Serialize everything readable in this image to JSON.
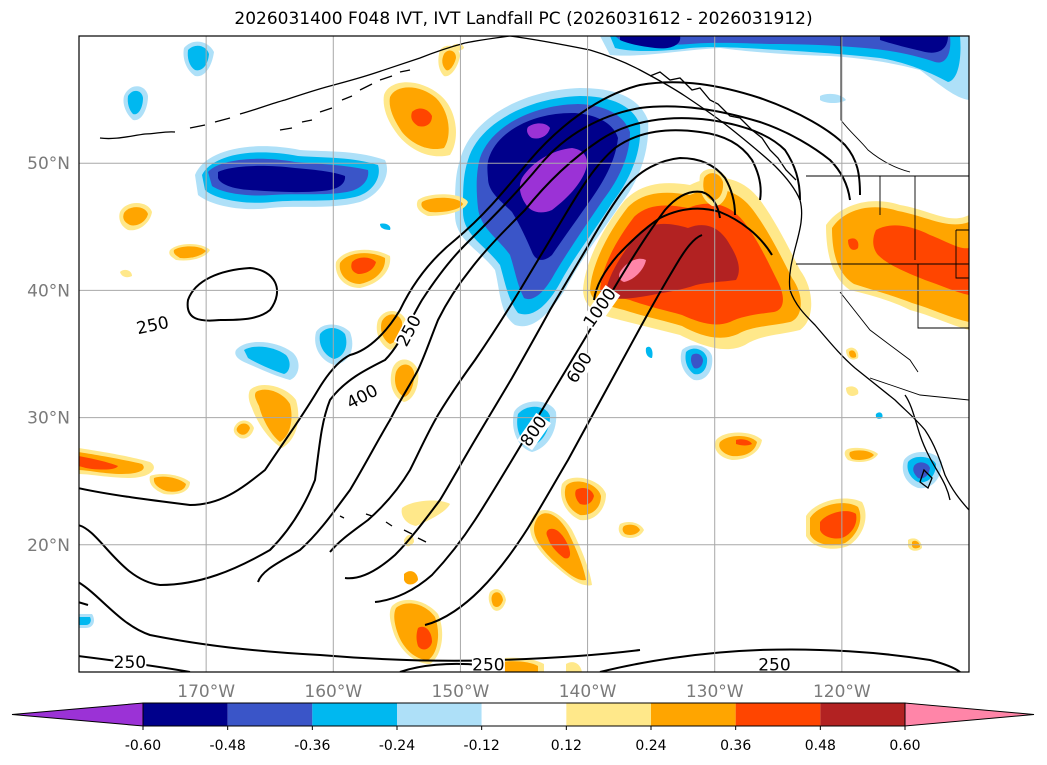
{
  "title": "2026031400 F048 IVT, IVT Landfall PC (2026031612 - 2026031912)",
  "map": {
    "lon_range": [
      -180,
      -110
    ],
    "lat_range": [
      10,
      60
    ],
    "lon_ticks": [
      {
        "value": -170,
        "label": "170°W"
      },
      {
        "value": -160,
        "label": "160°W"
      },
      {
        "value": -150,
        "label": "150°W"
      },
      {
        "value": -140,
        "label": "140°W"
      },
      {
        "value": -130,
        "label": "130°W"
      },
      {
        "value": -120,
        "label": "120°W"
      }
    ],
    "lat_ticks": [
      {
        "value": 20,
        "label": "20°N"
      },
      {
        "value": 30,
        "label": "30°N"
      },
      {
        "value": 40,
        "label": "40°N"
      },
      {
        "value": 50,
        "label": "50°N"
      }
    ],
    "contour_labels": [
      {
        "text": "250",
        "lon": -174.2,
        "lat": 37.2
      },
      {
        "text": "250",
        "lon": -154.0,
        "lat": 36.8
      },
      {
        "text": "400",
        "lon": -157.7,
        "lat": 31.6
      },
      {
        "text": "800",
        "lon": -144.2,
        "lat": 28.9
      },
      {
        "text": "600",
        "lon": -140.6,
        "lat": 33.9
      },
      {
        "text": "1000",
        "lon": -139.0,
        "lat": 38.6
      },
      {
        "text": "250",
        "lon": -176.0,
        "lat": 10.7
      },
      {
        "text": "250",
        "lon": -147.8,
        "lat": 10.5
      },
      {
        "text": "250",
        "lon": -125.3,
        "lat": 10.5
      }
    ]
  },
  "colorbar": {
    "ticks": [
      "-0.60",
      "-0.48",
      "-0.36",
      "-0.24",
      "-0.12",
      "0.12",
      "0.24",
      "0.36",
      "0.48",
      "0.60"
    ],
    "colors": {
      "extend_low": "#9b32d6",
      "bins": [
        "#00008b",
        "#3a55c8",
        "#00b8f0",
        "#aee0f8",
        "#ffffff",
        "#ffe88a",
        "#ffa500",
        "#ff4500",
        "#b22222"
      ],
      "extend_high": "#ff85a8"
    }
  }
}
